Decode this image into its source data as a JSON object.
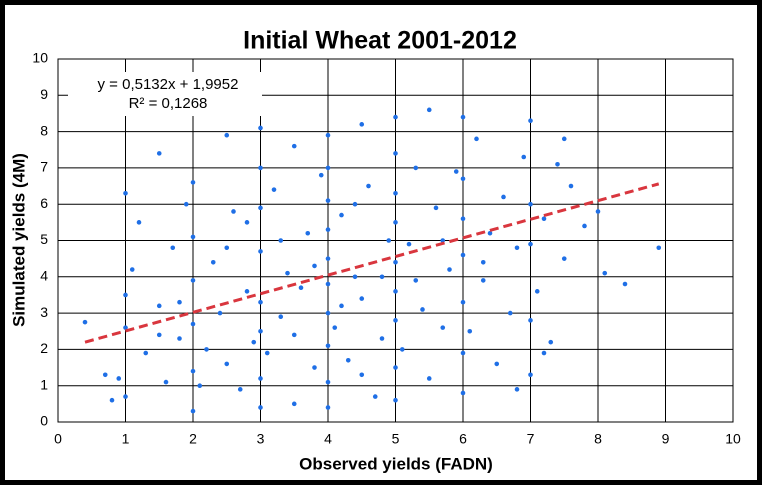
{
  "chart_data": {
    "type": "scatter",
    "title": "Initial Wheat 2001-2012",
    "x_label": "Observed yields (FADN)",
    "y_label": "Simulated yields (4M)",
    "annotations": [
      "y = 0,5132x + 1,9952",
      "R² = 0,1268"
    ],
    "xlim": [
      0,
      10
    ],
    "ylim": [
      0,
      10
    ],
    "xticks": [
      0,
      1,
      2,
      3,
      4,
      5,
      6,
      7,
      8,
      9,
      10
    ],
    "yticks": [
      0,
      1,
      2,
      3,
      4,
      5,
      6,
      7,
      8,
      9,
      10
    ],
    "grid": true,
    "points": {
      "color": "#1f6fe6",
      "x": [
        0.4,
        0.7,
        0.8,
        0.9,
        1.0,
        1.0,
        1.0,
        1.0,
        1.1,
        1.2,
        1.3,
        1.5,
        1.5,
        1.6,
        1.7,
        1.8,
        1.9,
        2.0,
        2.0,
        2.0,
        2.0,
        2.0,
        2.0,
        2.1,
        2.2,
        2.3,
        2.4,
        2.5,
        2.5,
        2.6,
        2.7,
        2.8,
        2.9,
        3.0,
        3.0,
        3.0,
        3.0,
        3.0,
        3.0,
        3.0,
        3.0,
        3.1,
        3.2,
        3.3,
        3.4,
        3.5,
        3.5,
        3.6,
        3.7,
        3.8,
        3.9,
        4.0,
        4.0,
        4.0,
        4.0,
        4.0,
        4.0,
        4.0,
        4.0,
        4.0,
        4.0,
        4.1,
        4.2,
        4.3,
        4.4,
        4.5,
        4.5,
        4.6,
        4.7,
        4.8,
        4.9,
        5.0,
        5.0,
        5.0,
        5.0,
        5.0,
        5.0,
        5.0,
        5.0,
        5.0,
        5.1,
        5.2,
        5.3,
        5.4,
        5.5,
        5.5,
        5.6,
        5.7,
        5.8,
        5.9,
        6.0,
        6.0,
        6.0,
        6.0,
        6.0,
        6.0,
        6.0,
        6.1,
        6.2,
        6.3,
        6.4,
        6.5,
        6.6,
        6.7,
        6.8,
        6.9,
        7.0,
        7.0,
        7.0,
        7.0,
        7.0,
        7.1,
        7.2,
        7.3,
        7.4,
        7.5,
        7.6,
        7.8,
        8.0,
        8.1,
        8.4,
        8.9,
        7.5,
        7.2,
        6.8,
        3.5,
        4.5,
        2.5,
        1.5,
        4.2,
        3.8,
        4.8,
        5.3,
        3.3,
        4.4,
        5.7,
        2.8,
        1.8,
        6.3
      ],
      "y": [
        2.75,
        1.3,
        0.6,
        1.2,
        2.6,
        3.5,
        6.3,
        0.7,
        4.2,
        5.5,
        1.9,
        7.4,
        3.2,
        1.1,
        4.8,
        2.3,
        6.0,
        0.3,
        1.4,
        2.7,
        3.9,
        5.1,
        6.6,
        1.0,
        2.0,
        4.4,
        3.0,
        7.9,
        1.6,
        5.8,
        0.9,
        3.6,
        2.2,
        0.4,
        1.2,
        2.5,
        3.3,
        4.7,
        5.9,
        7.0,
        8.1,
        1.9,
        6.4,
        2.9,
        4.1,
        0.5,
        7.6,
        3.7,
        5.2,
        1.5,
        6.8,
        0.4,
        1.1,
        2.1,
        3.0,
        3.8,
        4.5,
        5.3,
        6.1,
        7.0,
        7.9,
        2.6,
        5.7,
        1.7,
        4.0,
        8.2,
        3.4,
        6.5,
        0.7,
        2.3,
        5.0,
        0.6,
        1.5,
        2.8,
        3.6,
        4.4,
        5.5,
        6.3,
        7.4,
        8.4,
        2.0,
        4.9,
        7.0,
        3.1,
        8.6,
        1.2,
        5.9,
        2.6,
        4.2,
        6.9,
        0.8,
        1.9,
        3.3,
        4.6,
        5.6,
        6.7,
        8.4,
        2.5,
        7.8,
        3.9,
        5.2,
        1.6,
        6.2,
        3.0,
        4.8,
        7.3,
        1.3,
        2.8,
        4.9,
        6.0,
        8.3,
        3.6,
        5.6,
        2.2,
        7.1,
        4.5,
        6.5,
        5.4,
        5.8,
        4.1,
        3.8,
        4.8,
        7.8,
        1.9,
        0.9,
        2.4,
        1.3,
        4.8,
        2.4,
        3.2,
        4.3,
        4.0,
        3.9,
        5.0,
        6.0,
        5.0,
        5.5,
        3.3,
        4.4
      ]
    },
    "trendline": {
      "color": "#d9363e",
      "dashed": true,
      "x": [
        0.4,
        8.9
      ],
      "y": [
        2.2,
        6.56
      ]
    }
  }
}
